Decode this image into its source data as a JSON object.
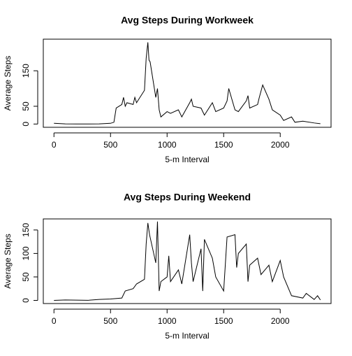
{
  "chart_data": [
    {
      "type": "line",
      "title": "Avg Steps During Workweek",
      "x_label": "5-m Interval",
      "y_label": "Average Steps",
      "xlim": [
        -94.2,
        2449.2
      ],
      "ylim": [
        -9.2,
        239
      ],
      "xticks": [
        0,
        500,
        1000,
        1500,
        2000
      ],
      "yticks": [
        0,
        50,
        150
      ],
      "series": [
        {
          "color": "#000000",
          "x": [
            0,
            100,
            200,
            300,
            400,
            500,
            530,
            550,
            600,
            615,
            630,
            645,
            700,
            715,
            730,
            800,
            815,
            830,
            840,
            850,
            900,
            915,
            930,
            945,
            1000,
            1030,
            1100,
            1130,
            1200,
            1215,
            1230,
            1300,
            1330,
            1400,
            1430,
            1500,
            1530,
            1545,
            1600,
            1630,
            1700,
            1715,
            1730,
            1800,
            1815,
            1845,
            1900,
            1930,
            2000,
            2030,
            2100,
            2130,
            2200,
            2300,
            2355
          ],
          "values": [
            2,
            0.5,
            0.2,
            0.1,
            0.3,
            2,
            5,
            45,
            55,
            75,
            50,
            60,
            55,
            75,
            60,
            95,
            185,
            230,
            180,
            175,
            75,
            100,
            40,
            20,
            35,
            30,
            40,
            20,
            60,
            70,
            50,
            45,
            25,
            60,
            35,
            45,
            65,
            100,
            40,
            35,
            65,
            80,
            45,
            55,
            75,
            110,
            70,
            40,
            25,
            10,
            20,
            5,
            8,
            3,
            1
          ]
        }
      ]
    },
    {
      "type": "line",
      "title": "Avg Steps During Weekend",
      "x_label": "5-m Interval",
      "y_label": "Average Steps",
      "xlim": [
        -94.2,
        2449.2
      ],
      "ylim": [
        -6.7,
        173.6
      ],
      "xticks": [
        0,
        500,
        1000,
        1500,
        2000
      ],
      "yticks": [
        0,
        50,
        100,
        150
      ],
      "series": [
        {
          "color": "#000000",
          "x": [
            0,
            100,
            200,
            300,
            400,
            500,
            600,
            630,
            700,
            730,
            800,
            815,
            830,
            845,
            900,
            915,
            930,
            945,
            1000,
            1015,
            1030,
            1100,
            1130,
            1200,
            1215,
            1230,
            1300,
            1315,
            1330,
            1400,
            1430,
            1500,
            1530,
            1600,
            1615,
            1630,
            1700,
            1715,
            1730,
            1800,
            1830,
            1900,
            1930,
            2000,
            2030,
            2100,
            2200,
            2230,
            2300,
            2330,
            2355
          ],
          "values": [
            0,
            1,
            0.5,
            0.2,
            2,
            3,
            5,
            20,
            25,
            35,
            45,
            120,
            165,
            140,
            80,
            168,
            20,
            40,
            50,
            95,
            40,
            65,
            35,
            140,
            80,
            40,
            110,
            20,
            130,
            90,
            50,
            20,
            135,
            140,
            70,
            100,
            120,
            40,
            75,
            90,
            55,
            75,
            40,
            85,
            50,
            10,
            5,
            15,
            2,
            10,
            1
          ]
        }
      ]
    }
  ]
}
